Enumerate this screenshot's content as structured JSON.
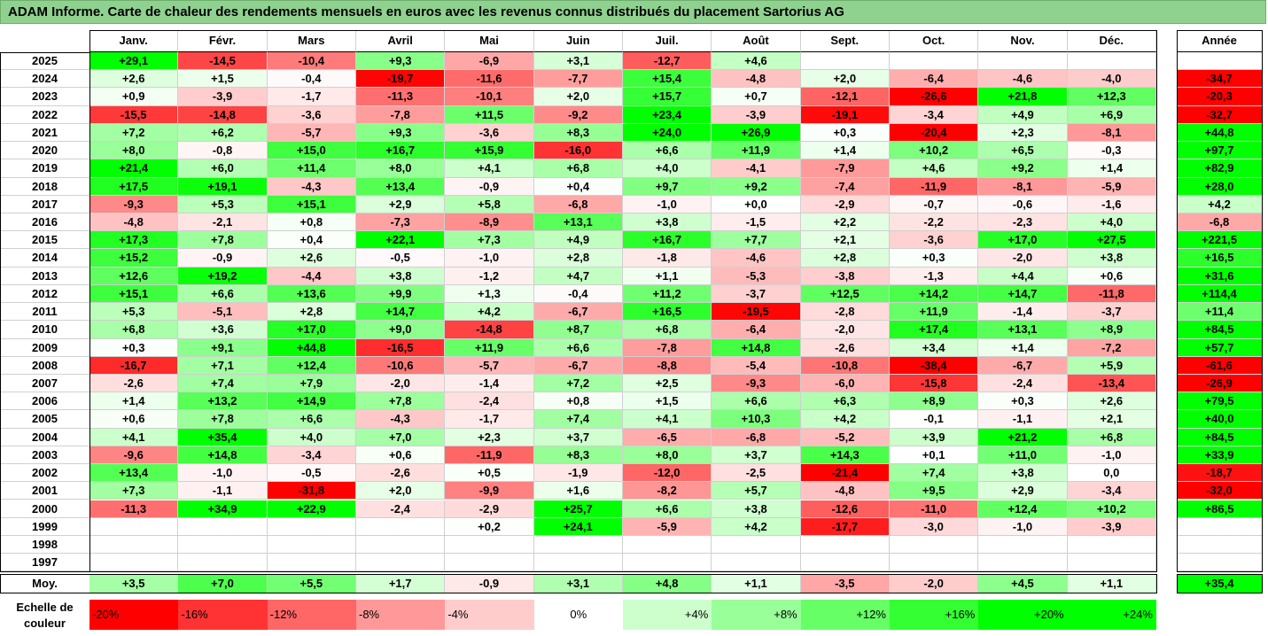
{
  "title": "ADAM Informe. Carte de chaleur des rendements mensuels en euros avec les revenus connus distribués du placement Sartorius AG",
  "chart_data": {
    "type": "heatmap",
    "columns": [
      "Janv.",
      "Févr.",
      "Mars",
      "Avril",
      "Mai",
      "Juin",
      "Juil.",
      "Août",
      "Sept.",
      "Oct.",
      "Nov.",
      "Déc."
    ],
    "year_column_label": "Année",
    "rows": [
      {
        "year": "2025",
        "months": [
          "+29,1",
          "-14,5",
          "-10,4",
          "+9,3",
          "-6,9",
          "+3,1",
          "-12,7",
          "+4,6",
          "",
          "",
          "",
          ""
        ],
        "total": ""
      },
      {
        "year": "2024",
        "months": [
          "+2,6",
          "+1,5",
          "-0,4",
          "-19,7",
          "-11,6",
          "-7,7",
          "+15,4",
          "-4,8",
          "+2,0",
          "-6,4",
          "-4,6",
          "-4,0"
        ],
        "total": "-34,7"
      },
      {
        "year": "2023",
        "months": [
          "+0,9",
          "-3,9",
          "-1,7",
          "-11,3",
          "-10,1",
          "+2,0",
          "+15,7",
          "+0,7",
          "-12,1",
          "-26,6",
          "+21,8",
          "+12,3"
        ],
        "total": "-20,3"
      },
      {
        "year": "2022",
        "months": [
          "-15,5",
          "-14,8",
          "-3,6",
          "-7,8",
          "+11,5",
          "-9,2",
          "+23,4",
          "-3,9",
          "-19,1",
          "-3,4",
          "+4,9",
          "+6,9"
        ],
        "total": "-32,7"
      },
      {
        "year": "2021",
        "months": [
          "+7,2",
          "+6,2",
          "-5,7",
          "+9,3",
          "-3,6",
          "+8,3",
          "+24,0",
          "+26,9",
          "+0,3",
          "-20,4",
          "+2,3",
          "-8,1"
        ],
        "total": "+44,8"
      },
      {
        "year": "2020",
        "months": [
          "+8,0",
          "-0,8",
          "+15,0",
          "+16,7",
          "+15,9",
          "-16,0",
          "+6,6",
          "+11,9",
          "+1,4",
          "+10,2",
          "+6,5",
          "-0,3"
        ],
        "total": "+97,7"
      },
      {
        "year": "2019",
        "months": [
          "+21,4",
          "+6,0",
          "+11,4",
          "+8,0",
          "+4,1",
          "+6,8",
          "+4,0",
          "-4,1",
          "-7,9",
          "+4,6",
          "+9,2",
          "+1,4"
        ],
        "total": "+82,9"
      },
      {
        "year": "2018",
        "months": [
          "+17,5",
          "+19,1",
          "-4,3",
          "+13,4",
          "-0,9",
          "+0,4",
          "+9,7",
          "+9,2",
          "-7,4",
          "-11,9",
          "-8,1",
          "-5,9"
        ],
        "total": "+28,0"
      },
      {
        "year": "2017",
        "months": [
          "-9,3",
          "+5,3",
          "+15,1",
          "+2,9",
          "+5,8",
          "-6,8",
          "-1,0",
          "+0,0",
          "-2,9",
          "-0,7",
          "-0,6",
          "-1,6"
        ],
        "total": "+4,2"
      },
      {
        "year": "2016",
        "months": [
          "-4,8",
          "-2,1",
          "+0,8",
          "-7,3",
          "-8,9",
          "+13,1",
          "+3,8",
          "-1,5",
          "+2,2",
          "-2,2",
          "-2,3",
          "+4,0"
        ],
        "total": "-6,8"
      },
      {
        "year": "2015",
        "months": [
          "+17,3",
          "+7,8",
          "+0,4",
          "+22,1",
          "+7,3",
          "+4,9",
          "+16,7",
          "+7,7",
          "+2,1",
          "-3,6",
          "+17,0",
          "+27,5"
        ],
        "total": "+221,5"
      },
      {
        "year": "2014",
        "months": [
          "+15,2",
          "-0,9",
          "+2,6",
          "-0,5",
          "-1,0",
          "+2,8",
          "-1,8",
          "-4,6",
          "+2,8",
          "+0,3",
          "-2,0",
          "+3,8"
        ],
        "total": "+16,5"
      },
      {
        "year": "2013",
        "months": [
          "+12,6",
          "+19,2",
          "-4,4",
          "+3,8",
          "-1,2",
          "+4,7",
          "+1,1",
          "-5,3",
          "-3,8",
          "-1,3",
          "+4,4",
          "+0,6"
        ],
        "total": "+31,6"
      },
      {
        "year": "2012",
        "months": [
          "+15,1",
          "+6,6",
          "+13,6",
          "+9,9",
          "+1,3",
          "-0,4",
          "+11,2",
          "-3,7",
          "+12,5",
          "+14,2",
          "+14,7",
          "-11,8"
        ],
        "total": "+114,4"
      },
      {
        "year": "2011",
        "months": [
          "+5,3",
          "-5,1",
          "+2,8",
          "+14,7",
          "+4,2",
          "-6,7",
          "+16,5",
          "-19,5",
          "-2,8",
          "+11,9",
          "-1,4",
          "-3,7"
        ],
        "total": "+11,4"
      },
      {
        "year": "2010",
        "months": [
          "+6,8",
          "+3,6",
          "+17,0",
          "+9,0",
          "-14,8",
          "+8,7",
          "+6,8",
          "-6,4",
          "-2,0",
          "+17,4",
          "+13,1",
          "+8,9"
        ],
        "total": "+84,5"
      },
      {
        "year": "2009",
        "months": [
          "+0,3",
          "+9,1",
          "+44,8",
          "-16,5",
          "+11,9",
          "+6,6",
          "-7,8",
          "+14,8",
          "-2,6",
          "+3,4",
          "+1,4",
          "-7,2"
        ],
        "total": "+57,7"
      },
      {
        "year": "2008",
        "months": [
          "-16,7",
          "+7,1",
          "+12,4",
          "-10,6",
          "-5,7",
          "-6,7",
          "-8,8",
          "-5,4",
          "-10,8",
          "-38,4",
          "-6,7",
          "+5,9"
        ],
        "total": "-61,6"
      },
      {
        "year": "2007",
        "months": [
          "-2,6",
          "+7,4",
          "+7,9",
          "-2,0",
          "-1,4",
          "+7,2",
          "+2,5",
          "-9,3",
          "-6,0",
          "-15,8",
          "-2,4",
          "-13,4"
        ],
        "total": "-26,9"
      },
      {
        "year": "2006",
        "months": [
          "+1,4",
          "+13,2",
          "+14,9",
          "+7,8",
          "-2,4",
          "+0,8",
          "+1,5",
          "+6,6",
          "+6,3",
          "+8,9",
          "+0,3",
          "+2,6"
        ],
        "total": "+79,5"
      },
      {
        "year": "2005",
        "months": [
          "+0,6",
          "+7,8",
          "+6,6",
          "-4,3",
          "-1,7",
          "+7,4",
          "+4,1",
          "+10,3",
          "+4,2",
          "-0,1",
          "-1,1",
          "+2,1"
        ],
        "total": "+40,0"
      },
      {
        "year": "2004",
        "months": [
          "+4,1",
          "+35,4",
          "+4,0",
          "+7,0",
          "+2,3",
          "+3,7",
          "-6,5",
          "-6,8",
          "-5,2",
          "+3,9",
          "+21,2",
          "+6,8"
        ],
        "total": "+84,5"
      },
      {
        "year": "2003",
        "months": [
          "-9,6",
          "+14,8",
          "-3,4",
          "+0,6",
          "-11,9",
          "+8,3",
          "+8,0",
          "+3,7",
          "+14,3",
          "+0,1",
          "+11,0",
          "-1,0"
        ],
        "total": "+33,9"
      },
      {
        "year": "2002",
        "months": [
          "+13,4",
          "-1,0",
          "-0,5",
          "-2,6",
          "+0,5",
          "-1,9",
          "-12,0",
          "-2,5",
          "-21,4",
          "+7,4",
          "+3,8",
          "0,0"
        ],
        "total": "-18,7"
      },
      {
        "year": "2001",
        "months": [
          "+7,3",
          "-1,1",
          "-31,8",
          "+2,0",
          "-9,9",
          "+1,6",
          "-8,2",
          "+5,7",
          "-4,8",
          "+9,5",
          "+2,9",
          "-3,4"
        ],
        "total": "-32,0"
      },
      {
        "year": "2000",
        "months": [
          "-11,3",
          "+34,9",
          "+22,9",
          "-2,4",
          "-2,9",
          "+25,7",
          "+6,6",
          "+3,8",
          "-12,6",
          "-11,0",
          "+12,4",
          "+10,2"
        ],
        "total": "+86,5"
      },
      {
        "year": "1999",
        "months": [
          "",
          "",
          "",
          "",
          "+0,2",
          "+24,1",
          "-5,9",
          "+4,2",
          "-17,7",
          "-3,0",
          "-1,0",
          "-3,9"
        ],
        "total": ""
      },
      {
        "year": "1998",
        "months": [
          "",
          "",
          "",
          "",
          "",
          "",
          "",
          "",
          "",
          "",
          "",
          ""
        ],
        "total": ""
      },
      {
        "year": "1997",
        "months": [
          "",
          "",
          "",
          "",
          "",
          "",
          "",
          "",
          "",
          "",
          "",
          ""
        ],
        "total": ""
      }
    ],
    "average": {
      "label": "Moy.",
      "months": [
        "+3,5",
        "+7,0",
        "+5,5",
        "+1,7",
        "-0,9",
        "+3,1",
        "+4,8",
        "+1,1",
        "-3,5",
        "-2,0",
        "+4,5",
        "+1,1"
      ],
      "total": "+35,4"
    },
    "scale": {
      "label_line1": "Echelle de",
      "label_line2": "couleur",
      "stops": [
        {
          "label": "-20%",
          "value": -20
        },
        {
          "label": "-16%",
          "value": -16
        },
        {
          "label": "-12%",
          "value": -12
        },
        {
          "label": "-8%",
          "value": -8
        },
        {
          "label": "-4%",
          "value": -4
        },
        {
          "label": "0%",
          "value": 0
        },
        {
          "label": "+4%",
          "value": 4
        },
        {
          "label": "+8%",
          "value": 8
        },
        {
          "label": "+12%",
          "value": 12
        },
        {
          "label": "+16%",
          "value": 16
        },
        {
          "label": "+20%",
          "value": 20
        },
        {
          "label": "+24%",
          "value": 24
        }
      ]
    },
    "colors": {
      "title_bg": "#8fd18f",
      "strong_negative": "#ff0000",
      "strong_positive": "#00ff00",
      "neutral": "#ffffff"
    }
  }
}
